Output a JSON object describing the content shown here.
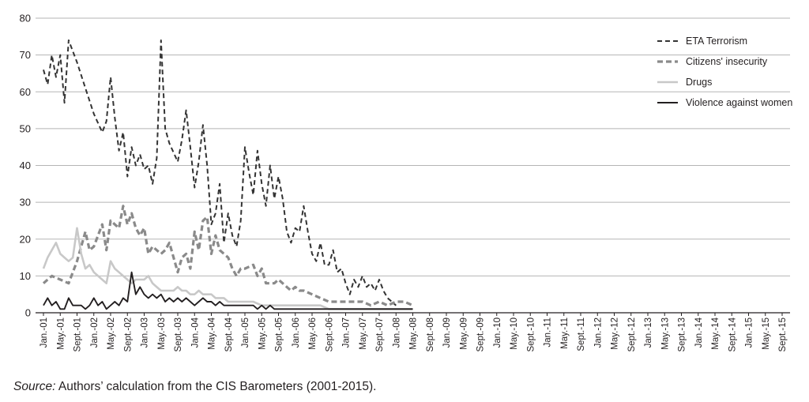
{
  "chart_data": {
    "type": "line",
    "ylim": [
      0,
      80
    ],
    "yticks": [
      0,
      10,
      20,
      30,
      40,
      50,
      60,
      70,
      80
    ],
    "grid": "horizontal",
    "legend_position": "top-right",
    "x_tick_labels": [
      "Jan.-01",
      "May.-01",
      "Sept.-01",
      "Jan.-02",
      "May.-02",
      "Sept.-02",
      "Jan.-03",
      "May.-03",
      "Sept.-03",
      "Jan.-04",
      "May.-04",
      "Sept.-04",
      "Jan.-05",
      "May.-05",
      "Sept.-05",
      "Jan.-06",
      "May.-06",
      "Sept.-06",
      "Jan.-07",
      "May.-07",
      "Sept.-07",
      "Jan.-08",
      "May.-08",
      "Sept.-08",
      "Jan.-09",
      "May.-09",
      "Sept.-09",
      "Jan.-10",
      "May.-10",
      "Sept.-10",
      "Jan.-11",
      "May.-11",
      "Sept.-11",
      "Jan.-12",
      "May.-12",
      "Sept.-12",
      "Jan.-13",
      "May.-13",
      "Sept.-13",
      "Jan.-14",
      "May.-14",
      "Sept.-14",
      "Jan.-15",
      "May.-15",
      "Sept.-15"
    ],
    "series": [
      {
        "name": "ETA Terrorism",
        "color": "#333333",
        "dash": "dashed",
        "points": [
          [
            0,
            66
          ],
          [
            0.25,
            62
          ],
          [
            0.5,
            70
          ],
          [
            0.75,
            64
          ],
          [
            1,
            70
          ],
          [
            1.25,
            57
          ],
          [
            1.5,
            74
          ],
          [
            2,
            68
          ],
          [
            2.5,
            61
          ],
          [
            3,
            54
          ],
          [
            3.5,
            49
          ],
          [
            3.75,
            52
          ],
          [
            4,
            64
          ],
          [
            4.25,
            53
          ],
          [
            4.5,
            44
          ],
          [
            4.75,
            49
          ],
          [
            5,
            37
          ],
          [
            5.25,
            45
          ],
          [
            5.5,
            40
          ],
          [
            5.75,
            43
          ],
          [
            6,
            39
          ],
          [
            6.25,
            40
          ],
          [
            6.5,
            35
          ],
          [
            6.75,
            42
          ],
          [
            7,
            74
          ],
          [
            7.25,
            50
          ],
          [
            7.5,
            46
          ],
          [
            8,
            41
          ],
          [
            8.25,
            47
          ],
          [
            8.5,
            55
          ],
          [
            8.75,
            45
          ],
          [
            9,
            34
          ],
          [
            9.25,
            41
          ],
          [
            9.5,
            51
          ],
          [
            9.75,
            40
          ],
          [
            10,
            24
          ],
          [
            10.25,
            27
          ],
          [
            10.5,
            35
          ],
          [
            10.75,
            19
          ],
          [
            11,
            27
          ],
          [
            11.25,
            21
          ],
          [
            11.5,
            18
          ],
          [
            11.75,
            25
          ],
          [
            12,
            45
          ],
          [
            12.25,
            38
          ],
          [
            12.5,
            32
          ],
          [
            12.75,
            44
          ],
          [
            13,
            35
          ],
          [
            13.25,
            29
          ],
          [
            13.5,
            40
          ],
          [
            13.75,
            31
          ],
          [
            14,
            37
          ],
          [
            14.25,
            31
          ],
          [
            14.5,
            22
          ],
          [
            14.75,
            19
          ],
          [
            15,
            23
          ],
          [
            15.25,
            22
          ],
          [
            15.5,
            29
          ],
          [
            15.75,
            22
          ],
          [
            16,
            16
          ],
          [
            16.25,
            14
          ],
          [
            16.5,
            19
          ],
          [
            16.75,
            13
          ],
          [
            17,
            13
          ],
          [
            17.25,
            17
          ],
          [
            17.5,
            11
          ],
          [
            17.75,
            12
          ],
          [
            18,
            8
          ],
          [
            18.25,
            5
          ],
          [
            18.5,
            9
          ],
          [
            18.75,
            7
          ],
          [
            19,
            10
          ],
          [
            19.25,
            7
          ],
          [
            19.5,
            8
          ],
          [
            19.75,
            6
          ],
          [
            20,
            9
          ],
          [
            20.25,
            6
          ],
          [
            20.5,
            4
          ],
          [
            20.75,
            3
          ],
          [
            21,
            2
          ]
        ]
      },
      {
        "name": "Citizens' insecurity",
        "color": "#8a8a8a",
        "dash": "dashed",
        "points": [
          [
            0,
            8
          ],
          [
            0.5,
            10
          ],
          [
            1,
            9
          ],
          [
            1.5,
            8
          ],
          [
            2,
            14
          ],
          [
            2.5,
            22
          ],
          [
            2.75,
            17
          ],
          [
            3,
            18
          ],
          [
            3.5,
            24
          ],
          [
            3.75,
            17
          ],
          [
            4,
            25
          ],
          [
            4.5,
            23
          ],
          [
            4.75,
            29
          ],
          [
            5,
            24
          ],
          [
            5.25,
            27
          ],
          [
            5.5,
            23
          ],
          [
            5.75,
            21
          ],
          [
            6,
            23
          ],
          [
            6.25,
            16
          ],
          [
            6.5,
            18
          ],
          [
            7,
            16
          ],
          [
            7.25,
            17
          ],
          [
            7.5,
            19
          ],
          [
            7.75,
            15
          ],
          [
            8,
            11
          ],
          [
            8.25,
            15
          ],
          [
            8.5,
            16
          ],
          [
            8.75,
            12
          ],
          [
            9,
            22
          ],
          [
            9.25,
            17
          ],
          [
            9.5,
            25
          ],
          [
            9.75,
            26
          ],
          [
            10,
            16
          ],
          [
            10.25,
            21
          ],
          [
            10.5,
            17
          ],
          [
            10.75,
            16
          ],
          [
            11,
            15
          ],
          [
            11.25,
            12
          ],
          [
            11.5,
            10
          ],
          [
            11.75,
            12
          ],
          [
            12,
            12
          ],
          [
            12.5,
            13
          ],
          [
            12.75,
            10
          ],
          [
            13,
            12
          ],
          [
            13.25,
            8
          ],
          [
            13.5,
            8
          ],
          [
            13.75,
            8
          ],
          [
            14,
            9
          ],
          [
            14.25,
            8
          ],
          [
            14.5,
            7
          ],
          [
            14.75,
            6
          ],
          [
            15,
            7
          ],
          [
            15.25,
            6
          ],
          [
            15.5,
            6
          ],
          [
            16,
            5
          ],
          [
            16.5,
            4
          ],
          [
            17,
            3
          ],
          [
            17.5,
            3
          ],
          [
            18,
            3
          ],
          [
            18.5,
            3
          ],
          [
            19,
            3
          ],
          [
            19.5,
            2
          ],
          [
            20,
            3
          ],
          [
            20.5,
            2
          ],
          [
            21,
            3
          ],
          [
            21.5,
            3
          ],
          [
            22,
            2
          ]
        ]
      },
      {
        "name": "Drugs",
        "color": "#c8c8c8",
        "dash": "solid",
        "points": [
          [
            0,
            12
          ],
          [
            0.25,
            15
          ],
          [
            0.5,
            17
          ],
          [
            0.75,
            19
          ],
          [
            1,
            16
          ],
          [
            1.25,
            15
          ],
          [
            1.5,
            14
          ],
          [
            1.75,
            15
          ],
          [
            2,
            23
          ],
          [
            2.25,
            16
          ],
          [
            2.5,
            12
          ],
          [
            2.75,
            13
          ],
          [
            3,
            11
          ],
          [
            3.25,
            10
          ],
          [
            3.5,
            9
          ],
          [
            3.75,
            8
          ],
          [
            4,
            14
          ],
          [
            4.25,
            12
          ],
          [
            4.5,
            11
          ],
          [
            4.75,
            10
          ],
          [
            5,
            9
          ],
          [
            5.25,
            8
          ],
          [
            5.5,
            9
          ],
          [
            5.75,
            9
          ],
          [
            6,
            9
          ],
          [
            6.25,
            10
          ],
          [
            6.5,
            8
          ],
          [
            6.75,
            7
          ],
          [
            7,
            6
          ],
          [
            7.25,
            6
          ],
          [
            7.5,
            6
          ],
          [
            7.75,
            6
          ],
          [
            8,
            7
          ],
          [
            8.25,
            6
          ],
          [
            8.5,
            6
          ],
          [
            8.75,
            5
          ],
          [
            9,
            5
          ],
          [
            9.25,
            6
          ],
          [
            9.5,
            5
          ],
          [
            9.75,
            5
          ],
          [
            10,
            5
          ],
          [
            10.25,
            4
          ],
          [
            10.5,
            4
          ],
          [
            10.75,
            4
          ],
          [
            11,
            3
          ],
          [
            11.5,
            3
          ],
          [
            12,
            3
          ],
          [
            12.5,
            3
          ],
          [
            13,
            2
          ],
          [
            13.5,
            2
          ],
          [
            14,
            2
          ],
          [
            14.5,
            2
          ],
          [
            15,
            2
          ],
          [
            15.5,
            2
          ],
          [
            16,
            2
          ],
          [
            16.5,
            2
          ],
          [
            17,
            1
          ],
          [
            17.5,
            1
          ],
          [
            18,
            1
          ],
          [
            18.5,
            1
          ],
          [
            19,
            1
          ],
          [
            19.5,
            1
          ],
          [
            20,
            1
          ],
          [
            20.5,
            1
          ],
          [
            21,
            1
          ],
          [
            22,
            1
          ]
        ]
      },
      {
        "name": "Violence against women",
        "color": "#231f20",
        "dash": "solid",
        "points": [
          [
            0,
            2
          ],
          [
            0.25,
            4
          ],
          [
            0.5,
            2
          ],
          [
            0.75,
            3
          ],
          [
            1,
            1
          ],
          [
            1.25,
            1
          ],
          [
            1.5,
            4
          ],
          [
            1.75,
            2
          ],
          [
            2,
            2
          ],
          [
            2.25,
            2
          ],
          [
            2.5,
            1
          ],
          [
            2.75,
            2
          ],
          [
            3,
            4
          ],
          [
            3.25,
            2
          ],
          [
            3.5,
            3
          ],
          [
            3.75,
            1
          ],
          [
            4,
            2
          ],
          [
            4.25,
            3
          ],
          [
            4.5,
            2
          ],
          [
            4.75,
            4
          ],
          [
            5,
            3
          ],
          [
            5.25,
            11
          ],
          [
            5.5,
            5
          ],
          [
            5.75,
            7
          ],
          [
            6,
            5
          ],
          [
            6.25,
            4
          ],
          [
            6.5,
            5
          ],
          [
            6.75,
            4
          ],
          [
            7,
            5
          ],
          [
            7.25,
            3
          ],
          [
            7.5,
            4
          ],
          [
            7.75,
            3
          ],
          [
            8,
            4
          ],
          [
            8.25,
            3
          ],
          [
            8.5,
            4
          ],
          [
            8.75,
            3
          ],
          [
            9,
            2
          ],
          [
            9.25,
            3
          ],
          [
            9.5,
            4
          ],
          [
            9.75,
            3
          ],
          [
            10,
            3
          ],
          [
            10.25,
            2
          ],
          [
            10.5,
            3
          ],
          [
            10.75,
            2
          ],
          [
            11,
            2
          ],
          [
            11.25,
            2
          ],
          [
            11.5,
            2
          ],
          [
            11.75,
            2
          ],
          [
            12,
            2
          ],
          [
            12.25,
            2
          ],
          [
            12.5,
            2
          ],
          [
            12.75,
            1
          ],
          [
            13,
            2
          ],
          [
            13.25,
            1
          ],
          [
            13.5,
            2
          ],
          [
            13.75,
            1
          ],
          [
            14,
            1
          ],
          [
            14.25,
            1
          ],
          [
            14.5,
            1
          ],
          [
            14.75,
            1
          ],
          [
            15,
            1
          ],
          [
            15.25,
            1
          ],
          [
            15.5,
            1
          ],
          [
            15.75,
            1
          ],
          [
            16,
            1
          ],
          [
            16.5,
            1
          ],
          [
            17,
            1
          ],
          [
            17.5,
            1
          ],
          [
            18,
            1
          ],
          [
            18.5,
            1
          ],
          [
            19,
            1
          ],
          [
            19.5,
            1
          ],
          [
            20,
            1
          ],
          [
            20.5,
            1
          ],
          [
            21,
            1
          ],
          [
            21.5,
            1
          ],
          [
            22,
            1
          ]
        ]
      }
    ]
  },
  "source": {
    "label": "Source:",
    "text": " Authors’ calculation from the CIS Barometers (2001-2015)."
  }
}
